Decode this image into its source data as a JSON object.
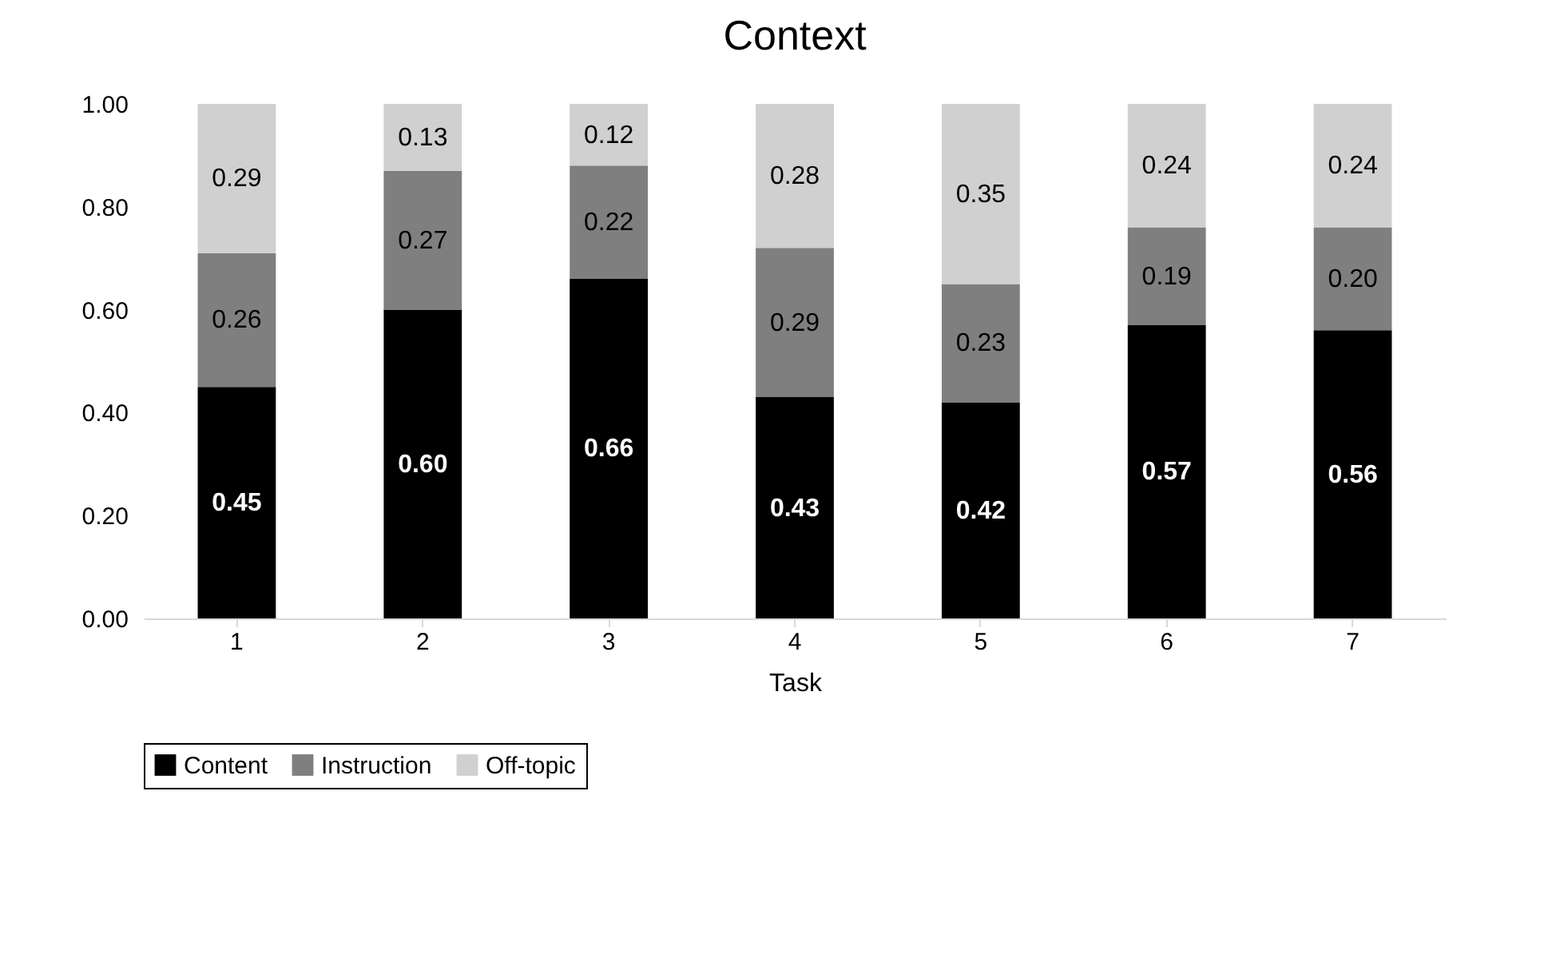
{
  "chart_data": {
    "type": "bar",
    "title": "Context",
    "xlabel": "Task",
    "categories": [
      "1",
      "2",
      "3",
      "4",
      "5",
      "6",
      "7"
    ],
    "stacked": true,
    "legend": "bottom",
    "grid": false,
    "ylim": [
      0,
      1
    ],
    "yticks": [
      {
        "value": 0,
        "label": "0.00"
      },
      {
        "value": 0.2,
        "label": "0.20"
      },
      {
        "value": 0.4,
        "label": "0.40"
      },
      {
        "value": 0.6,
        "label": "0.60"
      },
      {
        "value": 0.8,
        "label": "0.80"
      },
      {
        "value": 1,
        "label": "1.00"
      }
    ],
    "series": [
      {
        "name": "Content",
        "color": "#000000",
        "values": [
          0.45,
          0.6,
          0.66,
          0.43,
          0.42,
          0.57,
          0.56
        ],
        "value_labels": [
          "0.45",
          "0.60",
          "0.66",
          "0.43",
          "0.42",
          "0.57",
          "0.56"
        ]
      },
      {
        "name": "Instruction",
        "color": "#7f7f7f",
        "values": [
          0.26,
          0.27,
          0.22,
          0.29,
          0.23,
          0.19,
          0.2
        ],
        "value_labels": [
          "0.26",
          "0.27",
          "0.22",
          "0.29",
          "0.23",
          "0.19",
          "0.20"
        ]
      },
      {
        "name": "Off-topic",
        "color": "#d0d0d0",
        "values": [
          0.29,
          0.13,
          0.12,
          0.28,
          0.35,
          0.24,
          0.24
        ],
        "value_labels": [
          "0.29",
          "0.13",
          "0.12",
          "0.28",
          "0.35",
          "0.24",
          "0.24"
        ]
      }
    ]
  }
}
